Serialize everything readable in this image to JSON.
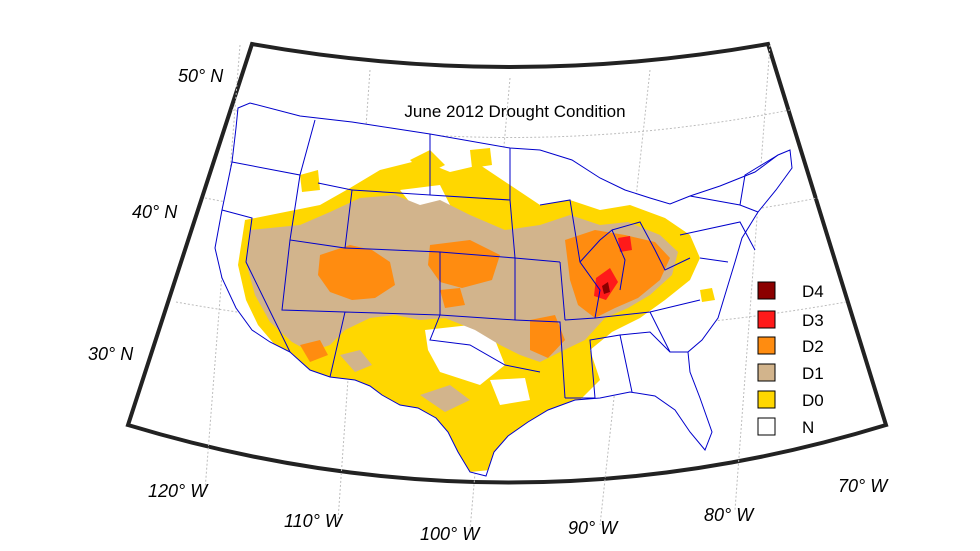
{
  "map": {
    "title": "June 2012 Drought Condition",
    "latitude_labels": [
      "50° N",
      "40° N",
      "30° N"
    ],
    "longitude_labels": [
      "120° W",
      "110° W",
      "100° W",
      "90° W",
      "80° W",
      "70° W"
    ]
  },
  "legend": {
    "items": [
      {
        "label": "D4",
        "color": "#8b0000"
      },
      {
        "label": "D3",
        "color": "#ff1a1a"
      },
      {
        "label": "D2",
        "color": "#ff8c10"
      },
      {
        "label": "D1",
        "color": "#d2b48c"
      },
      {
        "label": "D0",
        "color": "#ffd700"
      },
      {
        "label": "N",
        "color": "#ffffff"
      }
    ]
  },
  "colors": {
    "frame": "#222222",
    "graticule": "#bdbdbd",
    "boundaries": "#0000cc"
  }
}
